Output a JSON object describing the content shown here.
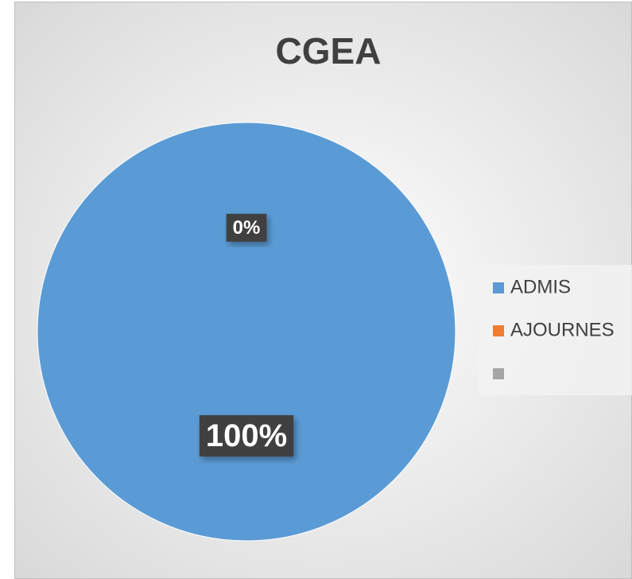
{
  "chart_data": {
    "type": "pie",
    "title": "CGEA",
    "categories": [
      "ADMIS",
      "AJOURNES",
      null
    ],
    "values": [
      100,
      0,
      0
    ],
    "value_labels": [
      "100%",
      "0%",
      null
    ],
    "colors": [
      "#5b9bd5",
      "#ed7d31",
      "#a5a5a5"
    ],
    "legend": "right"
  }
}
